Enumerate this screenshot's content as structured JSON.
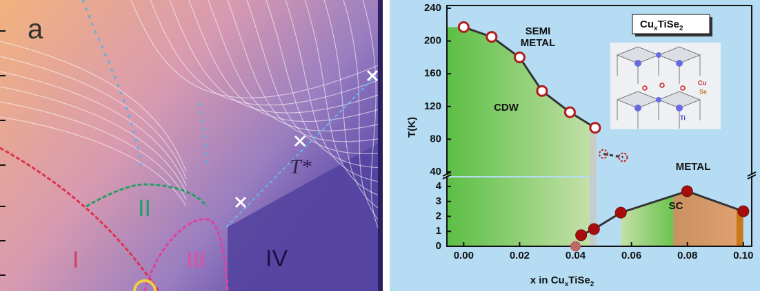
{
  "left_panel": {
    "panel_label": "a",
    "regions": [
      "I",
      "II",
      "III",
      "IV"
    ],
    "line_label": "T*"
  },
  "chart_data": {
    "type": "scatter",
    "y_label": "T(K)",
    "x_label": [
      "x in Cu",
      "x",
      "TiSe",
      "2"
    ],
    "formula": [
      "Cu",
      "x",
      "TiSe",
      "2"
    ],
    "annotations": [
      "SEMI",
      "METAL",
      "CDW",
      "METAL",
      "SC"
    ],
    "inset_labels": [
      "Cu",
      "Se",
      "Ti"
    ],
    "xlim": [
      -0.006,
      0.103
    ],
    "xticks": [
      {
        "value": 0,
        "label": "0.00"
      },
      0.02,
      0.04,
      0.06,
      0.08,
      {
        "value": 0.1,
        "label": "0.10"
      }
    ],
    "upper": {
      "ylim": [
        40,
        240
      ],
      "yticks": [
        40,
        80,
        120,
        160,
        200,
        240
      ],
      "series": [
        {
          "x": [
            0,
            0.01,
            0.02,
            0.028,
            0.038,
            0.047
          ],
          "values": [
            217,
            205,
            180,
            139,
            113,
            94
          ],
          "color": "#b01c1c",
          "marker": "open"
        },
        {
          "x": [
            0.05,
            0.057
          ],
          "values": [
            62,
            58
          ],
          "color": "#d02020",
          "marker": "dashed"
        }
      ]
    },
    "lower": {
      "ylim": [
        0,
        4.6
      ],
      "yticks": [
        0,
        1,
        2,
        3,
        4
      ],
      "series": [
        {
          "x": [
            0.042,
            0.0466,
            0.0562,
            0.0799,
            0.1
          ],
          "values": [
            0.74,
            1.15,
            2.25,
            3.68,
            2.34
          ],
          "color": "#a80d0d",
          "marker": "filled"
        },
        {
          "x": [
            0.04
          ],
          "values": [
            0
          ],
          "color": "#c06060",
          "marker": "hatched"
        }
      ]
    }
  }
}
